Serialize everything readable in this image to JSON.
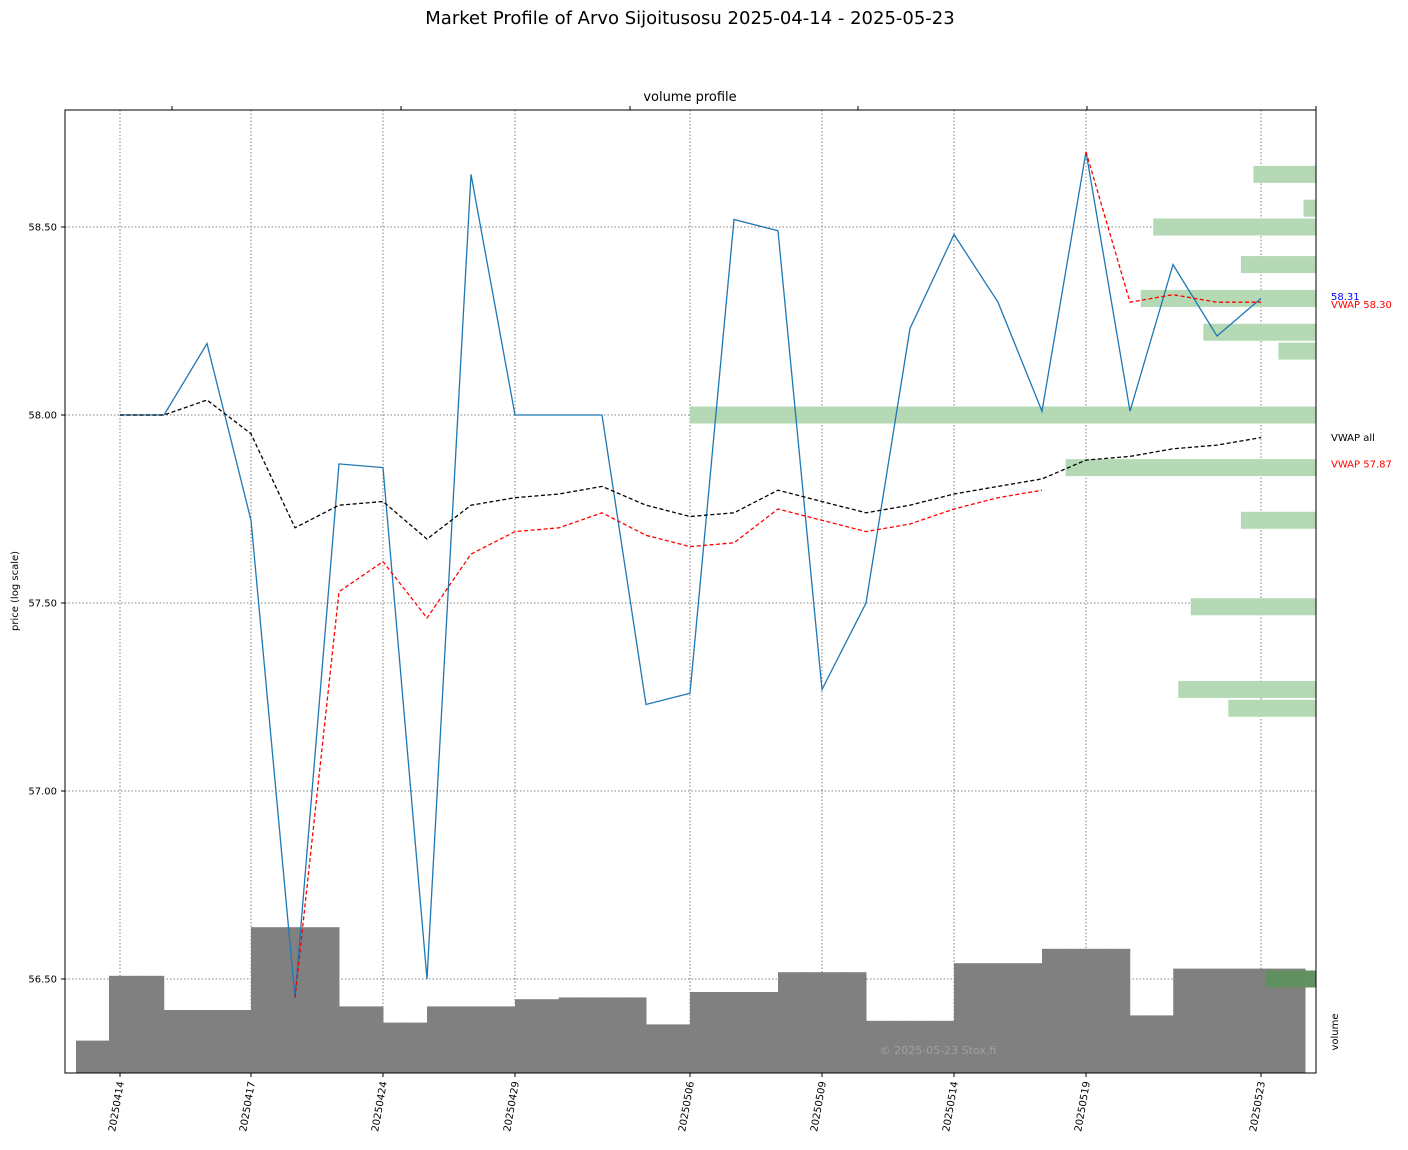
{
  "chart_data": {
    "type": "line",
    "title": "Market Profile of Arvo Sijoitusosu  2025-04-14  -  2025-05-23",
    "top_axis_label": "volume profile",
    "ylabel": "price (log scale)",
    "volume_label": "volume",
    "watermark": "© 2025-05-23 Stox.fi",
    "ylim": [
      56.26,
      58.82
    ],
    "y_ticks": [
      {
        "value": 56.5,
        "label": "56.50"
      },
      {
        "value": 57.0,
        "label": "57.00"
      },
      {
        "value": 57.5,
        "label": "57.50"
      },
      {
        "value": 58.0,
        "label": "58.00"
      },
      {
        "value": 58.5,
        "label": "58.50"
      }
    ],
    "dates": [
      "20250414",
      "20250415",
      "20250416",
      "20250417",
      "20250422",
      "20250423",
      "20250424",
      "20250425",
      "20250428",
      "20250429",
      "20250430",
      "20250502",
      "20250505",
      "20250506",
      "20250507",
      "20250508",
      "20250509",
      "20250512",
      "20250513",
      "20250514",
      "20250515",
      "20250516",
      "20250519",
      "20250520",
      "20250521",
      "20250522",
      "20250523"
    ],
    "x_tick_labels": [
      "20250414",
      "20250417",
      "20250424",
      "20250429",
      "20250506",
      "20250509",
      "20250514",
      "20250519",
      "20250523"
    ],
    "series": [
      {
        "name": "price",
        "color": "#1f77b4",
        "style": "solid",
        "values": [
          58.0,
          58.0,
          58.19,
          57.72,
          56.45,
          57.87,
          57.86,
          56.5,
          58.64,
          58.0,
          58.0,
          58.0,
          57.23,
          57.26,
          58.52,
          58.49,
          57.27,
          57.5,
          58.23,
          58.48,
          58.3,
          58.01,
          58.7,
          58.01,
          58.4,
          58.21,
          58.31
        ]
      },
      {
        "name": "VWAP all",
        "color": "#000000",
        "style": "dashed",
        "values": [
          58.0,
          58.0,
          58.04,
          57.95,
          57.7,
          57.76,
          57.77,
          57.67,
          57.76,
          57.78,
          57.79,
          57.81,
          57.76,
          57.73,
          57.74,
          57.8,
          57.77,
          57.74,
          57.76,
          57.79,
          57.81,
          57.83,
          57.88,
          57.89,
          57.91,
          57.92,
          57.94
        ]
      },
      {
        "name": "VWAP 57.87",
        "color": "#ff0000",
        "style": "dashed",
        "values": [
          null,
          null,
          null,
          null,
          56.45,
          57.53,
          57.61,
          57.46,
          57.63,
          57.69,
          57.7,
          57.74,
          57.68,
          57.65,
          57.66,
          57.75,
          57.72,
          57.69,
          57.71,
          57.75,
          57.78,
          57.8,
          null,
          null,
          null,
          null,
          null
        ]
      },
      {
        "name": "VWAP 58.30",
        "color": "#ff0000",
        "style": "dashed",
        "values": [
          null,
          null,
          null,
          null,
          null,
          null,
          null,
          null,
          null,
          null,
          null,
          null,
          null,
          null,
          null,
          null,
          null,
          null,
          null,
          null,
          null,
          null,
          58.7,
          58.3,
          58.32,
          58.3,
          58.3
        ]
      }
    ],
    "volume": [
      0.18,
      0.54,
      0.35,
      0.35,
      0.81,
      0.81,
      0.37,
      0.28,
      0.37,
      0.37,
      0.41,
      0.42,
      0.42,
      0.27,
      0.45,
      0.45,
      0.56,
      0.56,
      0.29,
      0.29,
      0.61,
      0.61,
      0.69,
      0.69,
      0.32,
      0.58,
      0.58
    ],
    "volume_profile": [
      {
        "price": 58.64,
        "value": 0.05
      },
      {
        "price": 58.55,
        "value": 0.01
      },
      {
        "price": 58.5,
        "value": 0.13
      },
      {
        "price": 58.4,
        "value": 0.06
      },
      {
        "price": 58.31,
        "value": 0.14
      },
      {
        "price": 58.22,
        "value": 0.09
      },
      {
        "price": 58.17,
        "value": 0.03
      },
      {
        "price": 58.0,
        "value": 0.5
      },
      {
        "price": 57.86,
        "value": 0.2
      },
      {
        "price": 57.72,
        "value": 0.06
      },
      {
        "price": 57.49,
        "value": 0.1
      },
      {
        "price": 57.27,
        "value": 0.11
      },
      {
        "price": 57.22,
        "value": 0.07
      },
      {
        "price": 56.5,
        "value": 0.04
      }
    ],
    "labels": [
      {
        "text": "VWAP all",
        "color": "#000000",
        "value": 57.94
      },
      {
        "text": "VWAP 57.87",
        "color": "#ff0000",
        "value": 57.87
      },
      {
        "text": "VWAP 58.30",
        "color": "#ff0000",
        "value": 58.3
      },
      {
        "text": "58.31",
        "color": "#0000ff",
        "value": 58.31
      }
    ],
    "colors": {
      "profile": "#b2d8b2",
      "profile_dark": "#5f8f5f",
      "volume": "#808080",
      "grid": "#808080"
    },
    "grid": true
  }
}
